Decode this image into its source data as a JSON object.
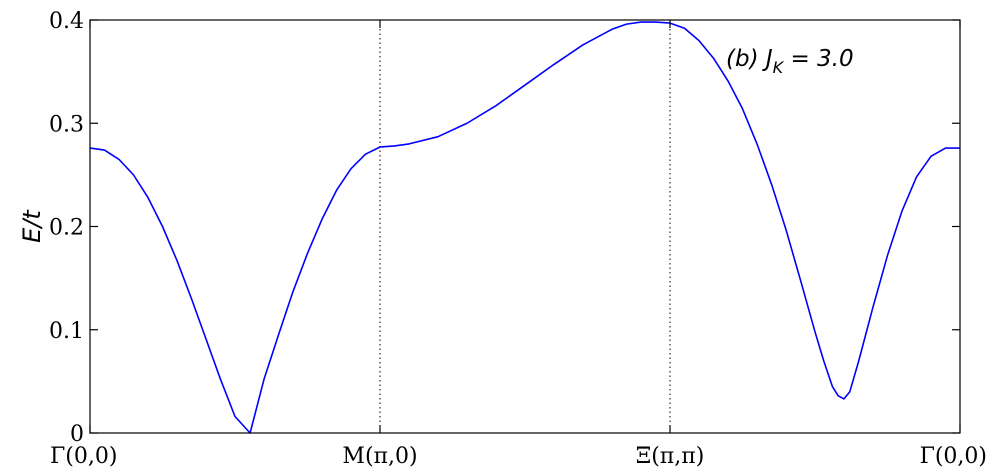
{
  "chart_data": {
    "type": "line",
    "ylabel": "E/t",
    "xlabel": "",
    "ylim": [
      0,
      0.4
    ],
    "yticks": [
      0,
      0.1,
      0.2,
      0.3,
      0.4
    ],
    "ytick_labels": [
      "0",
      "0.1",
      "0.2",
      "0.3",
      "0.4"
    ],
    "xlim": [
      0,
      3
    ],
    "xticks": [
      0,
      1,
      2,
      3
    ],
    "xtick_labels": [
      "Γ(0,0)",
      "M(π,0)",
      "Ξ(π,π)",
      "Γ(0,0)"
    ],
    "vlines": [
      1,
      2
    ],
    "grid": false,
    "annotation": {
      "prefix": "(b) J",
      "subscript": "K",
      "suffix": " = 3.0"
    },
    "series": [
      {
        "color": "#0000ff",
        "x": [
          0,
          0.05,
          0.1,
          0.15,
          0.2,
          0.25,
          0.3,
          0.35,
          0.4,
          0.45,
          0.5,
          0.552,
          0.6,
          0.65,
          0.7,
          0.75,
          0.8,
          0.85,
          0.9,
          0.95,
          1.0,
          1.05,
          1.1,
          1.2,
          1.3,
          1.4,
          1.5,
          1.6,
          1.7,
          1.8,
          1.85,
          1.9,
          1.95,
          2.0,
          2.05,
          2.1,
          2.15,
          2.2,
          2.25,
          2.3,
          2.35,
          2.4,
          2.45,
          2.5,
          2.53,
          2.56,
          2.58,
          2.6,
          2.62,
          2.65,
          2.7,
          2.75,
          2.8,
          2.85,
          2.9,
          2.95,
          3.0
        ],
        "y": [
          0.276,
          0.274,
          0.265,
          0.25,
          0.228,
          0.2,
          0.167,
          0.13,
          0.091,
          0.052,
          0.016,
          0.0,
          0.052,
          0.095,
          0.137,
          0.174,
          0.207,
          0.235,
          0.256,
          0.27,
          0.277,
          0.278,
          0.28,
          0.287,
          0.3,
          0.317,
          0.337,
          0.357,
          0.376,
          0.391,
          0.396,
          0.398,
          0.398,
          0.397,
          0.392,
          0.38,
          0.363,
          0.341,
          0.314,
          0.28,
          0.241,
          0.197,
          0.148,
          0.098,
          0.07,
          0.045,
          0.036,
          0.033,
          0.04,
          0.069,
          0.122,
          0.172,
          0.215,
          0.248,
          0.268,
          0.276,
          0.276
        ]
      }
    ]
  }
}
